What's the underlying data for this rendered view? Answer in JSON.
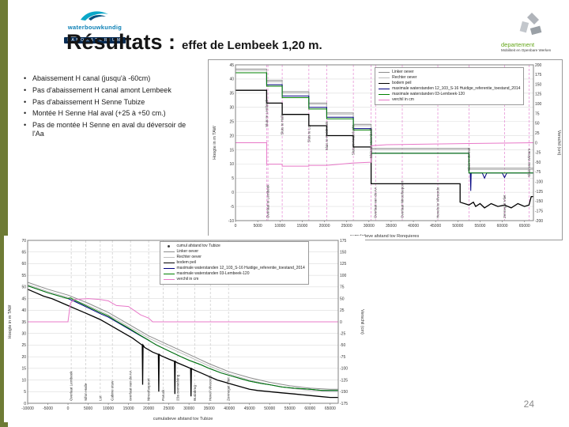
{
  "slide": {
    "title": "Résultats :",
    "subtitle": "effet de Lembeek 1,20 m.",
    "page_number": "24",
    "accent_bar_color": "#6e7b35"
  },
  "logos": {
    "waterbouwkundig": {
      "name": "waterbouwkundig",
      "sub": "LABORATORIUM",
      "color": "#0a7fb5"
    },
    "department": {
      "line1": "departement",
      "line2": "Mobiliteit en Openbare Werken",
      "line1_color": "#63a517"
    }
  },
  "bullets": [
    "Abaissement H canal (jusqu'à -60cm)",
    "Pas d'abaissement H canal amont Lembeek",
    "Pas d'abaissement H Senne Tubize",
    "Montée H Senne Hal aval (+25 à +50 cm.)",
    "Pas de montée H Senne en aval du déversoir de l'Aa"
  ],
  "chart_data": [
    {
      "id": "canal",
      "type": "line",
      "title": "",
      "xlabel": "cumulatieve afstand tov Ronquieres",
      "ylabel_left": "Hoogte in m TAW",
      "ylabel_right": "Verschil (cm)",
      "xlim": [
        0,
        67000
      ],
      "ylim_left": [
        -10,
        45
      ],
      "ylim_right": [
        -200,
        200
      ],
      "grid": true,
      "legend_position": "top-center",
      "annotation_line_color": "#e586d2",
      "x_ticks": [
        0,
        5000,
        10000,
        15000,
        20000,
        25000,
        30000,
        35000,
        40000,
        45000,
        50000,
        55000,
        60000,
        65000
      ],
      "y_ticks_left": [
        -10,
        -5,
        0,
        5,
        10,
        15,
        20,
        25,
        30,
        35,
        40,
        45
      ],
      "y_ticks_right": [
        -200,
        -175,
        -150,
        -125,
        -100,
        -75,
        -50,
        -25,
        0,
        25,
        50,
        75,
        100,
        125,
        150,
        175,
        200
      ],
      "legend": [
        {
          "label": "Linker oever",
          "color": "#8c8c8c"
        },
        {
          "label": "Rechter oever",
          "color": "#bfbfbf"
        },
        {
          "label": "bodem peil",
          "color": "#000000"
        },
        {
          "label": "maximale waterstanden 12_103_S-16 Huidige_referentie_toestand_2014",
          "color": "#00007f"
        },
        {
          "label": "maximale waterstanden 03-Lembeek-120",
          "color": "#008000"
        },
        {
          "label": "verchil in cm",
          "color": "#e878c8"
        }
      ],
      "series": [
        {
          "name": "Linker oever",
          "color": "#8c8c8c",
          "width": 1,
          "axis": "left",
          "x": [
            0,
            7000,
            7000,
            10500,
            10500,
            16500,
            16500,
            20500,
            20500,
            26500,
            26500,
            30500,
            30500,
            52500,
            52500,
            67000
          ],
          "y": [
            43.5,
            43.5,
            39.5,
            39.5,
            35.5,
            35.5,
            31.5,
            31.5,
            28,
            28,
            24,
            24,
            15.5,
            15.5,
            8.5,
            8.5
          ]
        },
        {
          "name": "Rechter oever",
          "color": "#bfbfbf",
          "width": 1,
          "axis": "left",
          "x": [
            0,
            7000,
            7000,
            10500,
            10500,
            16500,
            16500,
            20500,
            20500,
            26500,
            26500,
            30500,
            30500,
            52500,
            52500,
            67000
          ],
          "y": [
            43,
            43,
            39,
            39,
            35,
            35,
            31,
            31,
            27.5,
            27.5,
            23.5,
            23.5,
            15,
            15,
            8,
            8
          ]
        },
        {
          "name": "bodem peil",
          "color": "#000000",
          "width": 1.3,
          "axis": "left",
          "x": [
            0,
            7000,
            7000,
            10500,
            10500,
            16500,
            16500,
            20500,
            20500,
            26500,
            26500,
            30500,
            30500,
            50500,
            50500,
            52500,
            53500,
            54000,
            55000,
            56000,
            57500,
            59000,
            60500,
            62000,
            63500,
            65000,
            66000,
            66500,
            67000
          ],
          "y": [
            36,
            36,
            31.5,
            31.5,
            27.5,
            27.5,
            23.5,
            23.5,
            20,
            20,
            16,
            16,
            3,
            3,
            -3.5,
            -4.5,
            -3.5,
            -5,
            -4,
            -5.5,
            -4,
            -5,
            -4.5,
            -5.5,
            -4,
            -5,
            -4.5,
            -1.5,
            -1.5
          ]
        },
        {
          "name": "maximale waterstanden 12_103_S-16 Huidige_referentie_toestand_2014",
          "color": "#00007f",
          "width": 1,
          "axis": "left",
          "x": [
            0,
            7000,
            7000,
            10500,
            10500,
            16500,
            16500,
            20500,
            20500,
            26500,
            26500,
            30500,
            30500,
            52500,
            52500,
            52800,
            52900,
            53000,
            55500,
            56000,
            56500,
            60000,
            60500,
            61000,
            67000
          ],
          "y": [
            42.2,
            42.2,
            38,
            38,
            34,
            34,
            30,
            30,
            26.5,
            26.5,
            22.5,
            22.5,
            13.8,
            13.8,
            6.8,
            6.8,
            0.5,
            6.8,
            6.8,
            5,
            6.8,
            6.8,
            5.2,
            6.8,
            6.8
          ]
        },
        {
          "name": "maximale waterstanden 03-Lembeek-120",
          "color": "#008000",
          "width": 1,
          "axis": "left",
          "x": [
            0,
            7000,
            7000,
            10500,
            10500,
            16500,
            16500,
            20500,
            20500,
            26500,
            26500,
            30500,
            30500,
            52500,
            52500,
            67000
          ],
          "y": [
            42.2,
            42.2,
            37.45,
            37.45,
            33.4,
            33.4,
            29.4,
            29.4,
            25.95,
            25.95,
            22,
            22,
            13.75,
            13.75,
            6.8,
            6.8
          ]
        },
        {
          "name": "verchil in cm",
          "color": "#e878c8",
          "width": 1,
          "axis": "right",
          "x": [
            0,
            7000,
            7000,
            10500,
            10500,
            16500,
            16500,
            20500,
            26500,
            30500,
            30500,
            34000,
            40000,
            52500,
            67000
          ],
          "y": [
            0,
            0,
            -55,
            -55,
            -60,
            -60,
            -58,
            -58,
            -52,
            -50,
            -8,
            -5,
            -4,
            -2,
            0
          ]
        }
      ],
      "annotations": [
        {
          "x": 7000,
          "label": "Sluis te Lembeek",
          "ty": 0.4
        },
        {
          "x": 10500,
          "label": "Sluis te Halle",
          "ty": 0.45
        },
        {
          "x": 16500,
          "label": "Sluis te Lot",
          "ty": 0.5
        },
        {
          "x": 20500,
          "label": "Sluis te Ruisbroek",
          "ty": 0.55
        },
        {
          "x": 26500,
          "label": "Sluis te Anderlecht",
          "ty": 0.58
        },
        {
          "x": 30500,
          "label": "Sluis te Molenbeek",
          "ty": 0.6
        },
        {
          "x": 52500,
          "label": "Sluis te Zemst",
          "ty": 0.68
        },
        {
          "x": 66000,
          "label": "Sluis Van Wintam",
          "ty": 0.72
        },
        {
          "x": 7300,
          "label": "Overlaat te Lembeek",
          "ty": 0.985
        },
        {
          "x": 31500,
          "label": "Overlaat van de AA",
          "ty": 0.985
        },
        {
          "x": 37500,
          "label": "Overlaat Ninoofsepoort",
          "ty": 0.985
        },
        {
          "x": 45500,
          "label": "Hevels te Vilvoorde",
          "ty": 0.985
        },
        {
          "x": 60500,
          "label": "Zennegat Vliet",
          "ty": 0.985
        }
      ]
    },
    {
      "id": "senne",
      "type": "line",
      "title": "",
      "xlabel": "cumulatieve afstand tov Tubize",
      "ylabel_left": "Hoogte in m TAW",
      "ylabel_right": "Verschil (cm)",
      "xlim": [
        -10000,
        67000
      ],
      "ylim_left": [
        0,
        70
      ],
      "ylim_right": [
        -175,
        175
      ],
      "grid": true,
      "legend_position": "top-center",
      "annotation_line_color": "#c9c9c9",
      "x_ticks": [
        -10000,
        -5000,
        0,
        5000,
        10000,
        15000,
        20000,
        25000,
        30000,
        35000,
        40000,
        45000,
        50000,
        55000,
        60000,
        65000
      ],
      "y_ticks_left": [
        0,
        5,
        10,
        15,
        20,
        25,
        30,
        35,
        40,
        45,
        50,
        55,
        60,
        65,
        70
      ],
      "y_ticks_right": [
        -175,
        -150,
        -125,
        -100,
        -75,
        -50,
        -25,
        0,
        25,
        50,
        75,
        100,
        125,
        150,
        175
      ],
      "legend": [
        {
          "label": "cumul afstand tov Tubize",
          "color": "#404040",
          "marker": "dot"
        },
        {
          "label": "Linker oever",
          "color": "#8c8c8c"
        },
        {
          "label": "Rechter oever",
          "color": "#bfbfbf"
        },
        {
          "label": "bodem peil",
          "color": "#000000"
        },
        {
          "label": "maximale waterstanden 12_103_S-16 Huidige_referentie_toestand_2014",
          "color": "#00007f"
        },
        {
          "label": "maximale waterstanden 03-Lembeek-120",
          "color": "#008000"
        },
        {
          "label": "verchil in cm",
          "color": "#e878c8"
        }
      ],
      "series": [
        {
          "name": "Linker oever",
          "color": "#8c8c8c",
          "width": 1,
          "axis": "left",
          "x": [
            -10000,
            -5000,
            0,
            5000,
            10000,
            15000,
            20000,
            25000,
            30000,
            35000,
            40000,
            45000,
            50000,
            55000,
            60000,
            65000,
            67000
          ],
          "y": [
            52,
            49,
            46.5,
            43,
            39,
            34,
            29,
            25,
            21,
            17,
            13.5,
            11,
            9,
            7.5,
            6.5,
            6,
            6
          ]
        },
        {
          "name": "Rechter oever",
          "color": "#bfbfbf",
          "width": 1,
          "axis": "left",
          "x": [
            -10000,
            -5000,
            0,
            5000,
            10000,
            15000,
            20000,
            25000,
            30000,
            35000,
            40000,
            45000,
            50000,
            55000,
            60000,
            65000,
            67000
          ],
          "y": [
            51,
            48,
            45.5,
            42,
            38,
            33,
            28,
            24,
            20,
            16,
            12.5,
            10,
            8,
            6.5,
            5.5,
            5,
            5
          ]
        },
        {
          "name": "bodem peil",
          "color": "#000000",
          "width": 1.3,
          "axis": "left",
          "x": [
            -10000,
            -8000,
            -6000,
            -4000,
            -2000,
            0,
            2000,
            4000,
            6000,
            8000,
            10000,
            12000,
            14000,
            16000,
            18000,
            18400,
            18500,
            18600,
            19000,
            21000,
            22400,
            22500,
            22600,
            23000,
            25000,
            26400,
            26500,
            26600,
            27000,
            29000,
            30400,
            30500,
            30600,
            31000,
            33000,
            35000,
            37000,
            39000,
            41000,
            43000,
            45000,
            47000,
            50000,
            53000,
            56000,
            59000,
            62000,
            65000,
            67000
          ],
          "y": [
            49,
            47.5,
            46,
            45,
            43.5,
            42,
            40.5,
            39,
            37.5,
            36,
            34,
            32,
            30,
            28,
            25.5,
            25,
            8,
            25,
            24,
            22,
            21,
            5,
            21,
            20.5,
            19,
            18,
            4,
            18,
            17.5,
            16,
            15,
            3,
            15,
            14.5,
            13,
            11.5,
            10,
            9,
            8,
            7,
            6,
            5.5,
            5,
            4.5,
            4,
            3.5,
            3,
            2.5,
            2.5
          ]
        },
        {
          "name": "maximale waterstanden 12_103_S-16 Huidige_referentie_toestand_2014",
          "color": "#00007f",
          "width": 1,
          "axis": "left",
          "x": [
            -10000,
            -5000,
            0,
            2000,
            5000,
            8000,
            10000,
            12000,
            15000,
            18000,
            20000,
            22000,
            25000,
            28000,
            30000,
            33000,
            35000,
            38000,
            40000,
            43000,
            45000,
            48000,
            50000,
            53000,
            56000,
            60000,
            63000,
            67000
          ],
          "y": [
            50.5,
            47.5,
            45,
            43.5,
            41,
            38.5,
            37,
            35,
            32,
            29,
            27,
            25,
            22.5,
            20,
            18.5,
            16.5,
            15,
            13,
            12,
            10.5,
            9.5,
            8.5,
            8,
            7,
            6.5,
            6,
            5.5,
            5.5
          ]
        },
        {
          "name": "maximale waterstanden 03-Lembeek-120",
          "color": "#008000",
          "width": 1,
          "axis": "left",
          "x": [
            -10000,
            -5000,
            0,
            600,
            2000,
            5000,
            8000,
            10000,
            12000,
            15000,
            18000,
            20000,
            21000,
            22000,
            25000,
            28000,
            30000,
            33000,
            35000,
            38000,
            40000,
            43000,
            45000,
            48000,
            50000,
            53000,
            56000,
            60000,
            63000,
            67000
          ],
          "y": [
            50.5,
            47.5,
            45,
            45.3,
            44,
            41.5,
            39,
            37.5,
            35.35,
            32.35,
            29.15,
            27.1,
            26,
            25,
            22.5,
            20,
            18.5,
            16.5,
            15,
            13,
            12,
            10.5,
            9.5,
            8.5,
            8,
            7,
            6.5,
            6,
            5.5,
            5.5
          ]
        },
        {
          "name": "verchil in cm",
          "color": "#e878c8",
          "width": 1,
          "axis": "right",
          "x": [
            -10000,
            -5000,
            0,
            600,
            1500,
            5000,
            8000,
            10000,
            12000,
            15000,
            18000,
            20000,
            21000,
            25000,
            30000,
            40000,
            50000,
            60000,
            67000
          ],
          "y": [
            0,
            0,
            0,
            40,
            48,
            50,
            48,
            45,
            35,
            33,
            15,
            8,
            0,
            0,
            0,
            0,
            0,
            0,
            0
          ]
        }
      ],
      "annotations": [
        {
          "x": 800,
          "label": "Overlaat Lembeek"
        },
        {
          "x": 4400,
          "label": "Sifon Halle"
        },
        {
          "x": 8000,
          "label": "Lot"
        },
        {
          "x": 11000,
          "label": "Cabine stuw"
        },
        {
          "x": 15500,
          "label": "overlaat van de AA"
        },
        {
          "x": 20000,
          "label": "Ninoofsepoort"
        },
        {
          "x": 23600,
          "label": "Paruck"
        },
        {
          "x": 27200,
          "label": "23a overwelving"
        },
        {
          "x": 31400,
          "label": "Budabrug"
        },
        {
          "x": 35300,
          "label": "Hevel Vilvoorde"
        },
        {
          "x": 39800,
          "label": "Zennegat Vliet"
        }
      ]
    }
  ]
}
